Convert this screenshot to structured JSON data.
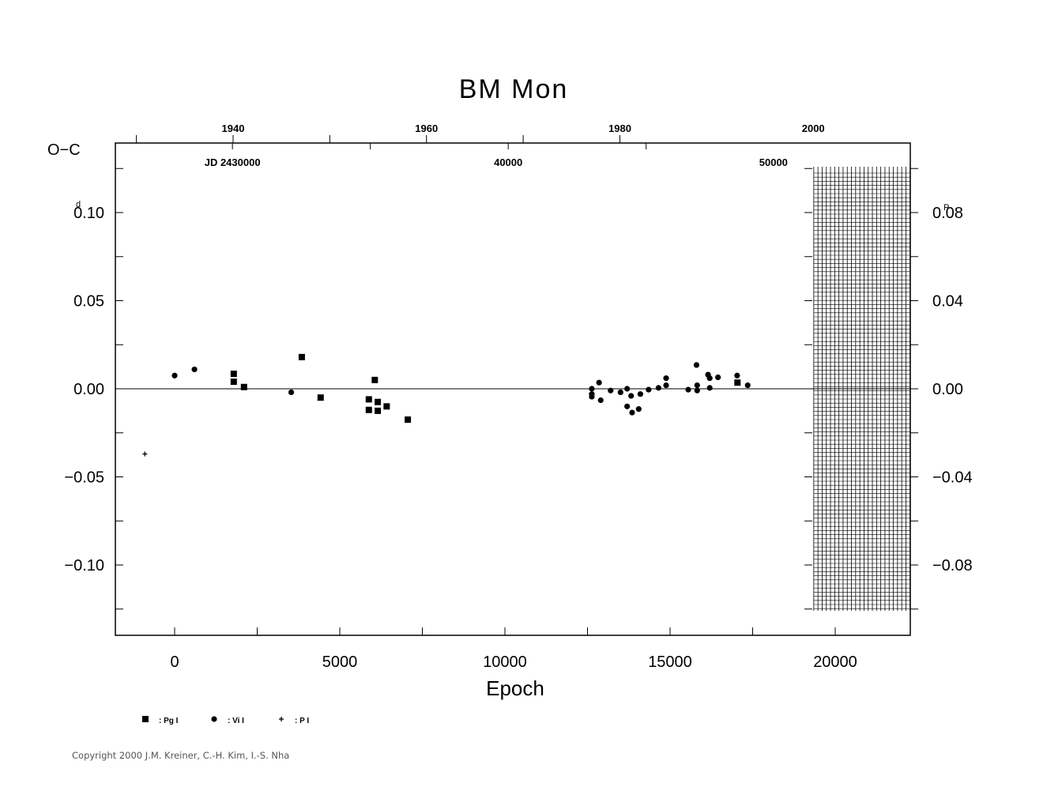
{
  "chart_data": {
    "type": "scatter",
    "title": "BM  Mon",
    "xlabel": "Epoch",
    "ylabel_left": "O−C",
    "left_unit_superscript": "d",
    "right_unit_superscript": "P",
    "xlim": [
      -1800,
      22300
    ],
    "ylim": [
      -0.14,
      0.14
    ],
    "x_ticks": [
      {
        "value": 0,
        "label": "0"
      },
      {
        "value": 5000,
        "label": "5000"
      },
      {
        "value": 10000,
        "label": "10000"
      },
      {
        "value": 15000,
        "label": "15000"
      },
      {
        "value": 20000,
        "label": "20000"
      }
    ],
    "y_ticks_left": [
      {
        "value": 0.1,
        "label": "0.10"
      },
      {
        "value": 0.05,
        "label": "0.05"
      },
      {
        "value": 0.0,
        "label": "0.00"
      },
      {
        "value": -0.05,
        "label": "−0.05"
      },
      {
        "value": -0.1,
        "label": "−0.10"
      }
    ],
    "y_ticks_right": [
      {
        "value": 0.1,
        "label": "0.08"
      },
      {
        "value": 0.05,
        "label": "0.04"
      },
      {
        "value": 0.0,
        "label": "0.00"
      },
      {
        "value": -0.05,
        "label": "−0.04"
      },
      {
        "value": -0.1,
        "label": "−0.08"
      }
    ],
    "top_year_ticks": [
      {
        "epoch": 1770,
        "label": "1940"
      },
      {
        "epoch": 7625,
        "label": "1960"
      },
      {
        "epoch": 13480,
        "label": "1980"
      },
      {
        "epoch": 19335,
        "label": "2000"
      }
    ],
    "jd_labels": [
      {
        "epoch": 1750,
        "label": "JD  2430000"
      },
      {
        "epoch": 10100,
        "label": "40000"
      },
      {
        "epoch": 18130,
        "label": "50000"
      }
    ],
    "future_hatch_start_epoch": 19350,
    "series": [
      {
        "name": ": Pg  I",
        "marker": "square",
        "points": [
          [
            1790,
            0.0085
          ],
          [
            1790,
            0.004
          ],
          [
            2100,
            0.001
          ],
          [
            3850,
            0.018
          ],
          [
            4420,
            -0.005
          ],
          [
            5880,
            -0.006
          ],
          [
            5880,
            -0.012
          ],
          [
            6060,
            0.005
          ],
          [
            6150,
            -0.0075
          ],
          [
            6150,
            -0.0125
          ],
          [
            6420,
            -0.01
          ],
          [
            7060,
            -0.0175
          ],
          [
            17040,
            0.0035
          ]
        ]
      },
      {
        "name": ": Vi  I",
        "marker": "circle",
        "points": [
          [
            0,
            0.0075
          ],
          [
            600,
            0.011
          ],
          [
            3530,
            -0.002
          ],
          [
            12630,
            0.0
          ],
          [
            12630,
            -0.003
          ],
          [
            12630,
            -0.0045
          ],
          [
            12850,
            0.0035
          ],
          [
            12900,
            -0.0065
          ],
          [
            13200,
            -0.001
          ],
          [
            13500,
            -0.002
          ],
          [
            13700,
            0.0
          ],
          [
            13700,
            -0.01
          ],
          [
            13820,
            -0.004
          ],
          [
            13850,
            -0.0135
          ],
          [
            14050,
            -0.0115
          ],
          [
            14100,
            -0.003
          ],
          [
            14350,
            -0.0005
          ],
          [
            14650,
            0.0005
          ],
          [
            14880,
            0.006
          ],
          [
            14880,
            0.002
          ],
          [
            15550,
            -0.0005
          ],
          [
            15800,
            0.0135
          ],
          [
            15820,
            0.002
          ],
          [
            15820,
            -0.001
          ],
          [
            16150,
            0.008
          ],
          [
            16200,
            0.006
          ],
          [
            16200,
            0.0005
          ],
          [
            16450,
            0.0065
          ],
          [
            17030,
            0.0075
          ],
          [
            17350,
            0.002
          ]
        ]
      },
      {
        "name": ": P  I",
        "marker": "plus",
        "points": [
          [
            -900,
            -0.037
          ]
        ]
      }
    ]
  },
  "copyright": "Copyright 2000 J.M. Kreiner, C.-H. Kim, I.-S. Nha"
}
